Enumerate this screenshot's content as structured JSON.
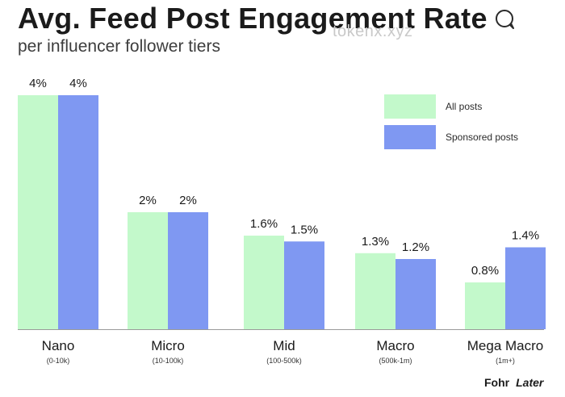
{
  "header": {
    "title": "Avg. Feed Post Engagement Rate",
    "subtitle": "per influencer follower tiers",
    "title_icon": "speech-bubble-icon"
  },
  "watermark": "tokenx.xyz",
  "brand": {
    "left": "Fohr",
    "right": "Later"
  },
  "colors": {
    "all_posts": "#c3f9cb",
    "sponsored_posts": "#7f98f2",
    "axis": "#9a9a9a",
    "text": "#1a1a1a"
  },
  "legend": [
    {
      "label": "All posts",
      "color_key": "all_posts"
    },
    {
      "label": "Sponsored posts",
      "color_key": "sponsored_posts"
    }
  ],
  "chart_data": {
    "type": "bar",
    "title": "Avg. Feed Post Engagement Rate",
    "subtitle": "per influencer follower tiers",
    "categories": [
      "Nano",
      "Micro",
      "Mid",
      "Macro",
      "Mega Macro"
    ],
    "category_sublabels": [
      "(0-10k)",
      "(10-100k)",
      "(100-500k)",
      "(500k-1m)",
      "(1m+)"
    ],
    "series": [
      {
        "name": "All posts",
        "values": [
          4,
          2,
          1.6,
          1.3,
          0.8
        ],
        "labels": [
          "4%",
          "2%",
          "1.6%",
          "1.3%",
          "0.8%"
        ]
      },
      {
        "name": "Sponsored posts",
        "values": [
          4,
          2,
          1.5,
          1.2,
          1.4
        ],
        "labels": [
          "4%",
          "2%",
          "1.5%",
          "1.2%",
          "1.4%"
        ]
      }
    ],
    "ylim": [
      0,
      4
    ],
    "grid": false,
    "legend_position": "top-right"
  }
}
